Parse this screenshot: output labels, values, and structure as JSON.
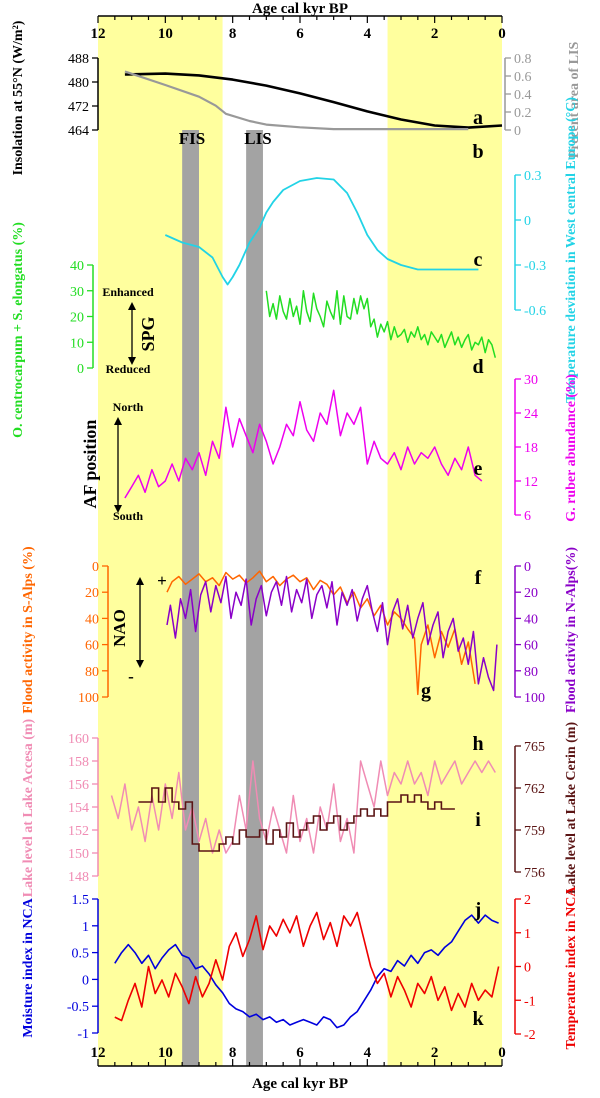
{
  "figure": {
    "top_axis_title": "Age cal kyr BP",
    "bottom_axis_title": "Age cal kyr BP",
    "age_ticks": [
      12,
      10,
      8,
      6,
      4,
      2,
      0
    ],
    "band_labels": [
      "FIS",
      "LIS"
    ],
    "colors": {
      "yellow_band": "#ffff9e",
      "gray_band": "#a3a3a3",
      "insolation": "#000000",
      "lis": "#999999",
      "temp_eu": "#22d3e6",
      "spg": "#22dd22",
      "af": "#ee00ee",
      "flood_s": "#ff6600",
      "flood_n": "#8a00c8",
      "accesa": "#f08cb4",
      "cerin": "#5a1414",
      "moisture": "#0000dd",
      "temp_nca": "#ee0000"
    }
  },
  "chart_data": [
    {
      "id": "a",
      "type": "line",
      "ylabel": "Insolation at 55°N (W/m²)",
      "ylim": [
        464,
        488
      ],
      "yticks": [
        464,
        472,
        480,
        488
      ],
      "x": [
        11.2,
        10,
        9,
        8,
        7,
        6,
        5,
        4,
        3,
        2,
        1,
        0
      ],
      "y": [
        482.5,
        482.8,
        482.2,
        480.8,
        478.8,
        476.2,
        473.3,
        470.2,
        467.5,
        465.5,
        464.8,
        465.5
      ]
    },
    {
      "id": "b",
      "type": "line",
      "ylabel": "Precent area of LIS",
      "ylim": [
        0,
        0.8
      ],
      "yticks": [
        0,
        0.2,
        0.4,
        0.6,
        0.8
      ],
      "x": [
        11.2,
        10,
        9,
        8.5,
        8.2,
        7.5,
        7,
        6,
        5,
        4,
        3,
        2,
        1
      ],
      "y": [
        0.65,
        0.5,
        0.37,
        0.27,
        0.18,
        0.1,
        0.06,
        0.03,
        0.01,
        0.01,
        0.01,
        0.01,
        0.01
      ]
    },
    {
      "id": "c",
      "type": "line",
      "ylabel": "Temperature deviation in West central Europe (°C)",
      "ylim": [
        -0.6,
        0.3
      ],
      "yticks": [
        -0.6,
        -0.3,
        0,
        0.3
      ],
      "x": [
        10,
        9.5,
        9,
        8.6,
        8.3,
        8.15,
        8.0,
        7.8,
        7.5,
        7.2,
        7.0,
        6.8,
        6.5,
        6.0,
        5.5,
        5.0,
        4.6,
        4.3,
        4.0,
        3.7,
        3.4,
        3.0,
        2.5,
        2.0,
        1.5,
        1.0,
        0.7
      ],
      "y": [
        -0.1,
        -0.15,
        -0.18,
        -0.25,
        -0.38,
        -0.43,
        -0.38,
        -0.3,
        -0.15,
        -0.05,
        0.05,
        0.12,
        0.2,
        0.26,
        0.28,
        0.27,
        0.18,
        0.05,
        -0.1,
        -0.2,
        -0.26,
        -0.3,
        -0.33,
        -0.33,
        -0.33,
        -0.33,
        -0.33
      ]
    },
    {
      "id": "d",
      "type": "line",
      "ylabel": "O. centrocarpum + S. elongatus (%)",
      "ylim": [
        0,
        40
      ],
      "yticks": [
        0,
        10,
        20,
        30,
        40
      ],
      "annotations": [
        "Enhanced",
        "SPG",
        "Reduced"
      ],
      "x": [
        7.0,
        6.9,
        6.8,
        6.7,
        6.6,
        6.5,
        6.4,
        6.3,
        6.2,
        6.1,
        6.0,
        5.9,
        5.8,
        5.7,
        5.6,
        5.5,
        5.4,
        5.3,
        5.2,
        5.1,
        5.0,
        4.9,
        4.8,
        4.7,
        4.6,
        4.5,
        4.4,
        4.3,
        4.2,
        4.1,
        4.0,
        3.9,
        3.8,
        3.7,
        3.6,
        3.5,
        3.4,
        3.3,
        3.2,
        3.1,
        3.0,
        2.9,
        2.8,
        2.7,
        2.6,
        2.5,
        2.4,
        2.3,
        2.2,
        2.1,
        2.0,
        1.9,
        1.8,
        1.7,
        1.6,
        1.5,
        1.4,
        1.3,
        1.2,
        1.1,
        1.0,
        0.9,
        0.8,
        0.7,
        0.6,
        0.5,
        0.4,
        0.3,
        0.2
      ],
      "y": [
        30,
        20,
        25,
        19,
        28,
        22,
        19,
        27,
        20,
        24,
        17,
        30,
        22,
        18,
        29,
        23,
        20,
        16,
        26,
        22,
        19,
        30,
        17,
        28,
        20,
        19,
        27,
        21,
        28,
        23,
        27,
        16,
        19,
        12,
        17,
        14,
        18,
        11,
        16,
        12,
        13,
        15,
        10,
        14,
        12,
        16,
        11,
        13,
        9,
        14,
        12,
        10,
        13,
        8,
        11,
        14,
        9,
        12,
        8,
        11,
        13,
        7,
        10,
        9,
        12,
        6,
        11,
        9,
        4
      ]
    },
    {
      "id": "e",
      "type": "line",
      "ylabel": "G. ruber abundance (%)",
      "ylim": [
        6,
        30
      ],
      "yticks": [
        6,
        12,
        18,
        24,
        30
      ],
      "annotations": [
        "North",
        "AF position",
        "South"
      ],
      "x": [
        11.2,
        11.0,
        10.8,
        10.6,
        10.4,
        10.2,
        10.0,
        9.8,
        9.6,
        9.4,
        9.2,
        9.0,
        8.8,
        8.6,
        8.4,
        8.2,
        8.0,
        7.8,
        7.6,
        7.4,
        7.2,
        7.0,
        6.8,
        6.6,
        6.4,
        6.2,
        6.0,
        5.8,
        5.6,
        5.4,
        5.2,
        5.0,
        4.8,
        4.6,
        4.4,
        4.2,
        4.0,
        3.8,
        3.6,
        3.4,
        3.2,
        3.0,
        2.8,
        2.6,
        2.4,
        2.2,
        2.0,
        1.8,
        1.6,
        1.4,
        1.2,
        1.0,
        0.8,
        0.6
      ],
      "y": [
        9,
        11,
        13,
        10,
        14,
        11,
        12,
        15,
        12,
        16,
        14,
        17,
        13,
        19,
        16,
        25,
        18,
        23,
        20,
        17,
        22,
        19,
        15,
        18,
        22,
        20,
        26,
        21,
        19,
        24,
        22,
        28,
        20,
        24,
        22,
        25,
        15,
        19,
        16,
        15,
        17,
        14,
        18,
        15,
        17,
        16,
        18,
        15,
        13,
        16,
        14,
        18,
        13,
        12
      ]
    },
    {
      "id": "f",
      "type": "line",
      "series": [
        {
          "name": "Flood activity in S-Alps (%)",
          "ylim": [
            100,
            0
          ],
          "yticks": [
            0,
            20,
            40,
            60,
            80,
            100
          ],
          "x": [
            9.95,
            9.8,
            9.6,
            9.4,
            9.2,
            9.0,
            8.8,
            8.6,
            8.4,
            8.2,
            8.0,
            7.8,
            7.6,
            7.4,
            7.2,
            7.0,
            6.8,
            6.6,
            6.4,
            6.2,
            6.0,
            5.8,
            5.6,
            5.4,
            5.2,
            5.0,
            4.8,
            4.6,
            4.4,
            4.2,
            4.0,
            3.8,
            3.6,
            3.4,
            3.2,
            3.0,
            2.8,
            2.6,
            2.5,
            2.4,
            2.2,
            2.0,
            1.8,
            1.6,
            1.4,
            1.2,
            1.0,
            0.8
          ],
          "y": [
            20,
            12,
            8,
            14,
            10,
            6,
            12,
            9,
            15,
            5,
            10,
            7,
            13,
            9,
            4,
            12,
            8,
            15,
            10,
            7,
            12,
            9,
            18,
            11,
            14,
            22,
            16,
            28,
            20,
            32,
            25,
            38,
            30,
            45,
            35,
            40,
            48,
            55,
            98,
            60,
            45,
            70,
            50,
            62,
            48,
            75,
            58,
            90
          ]
        },
        {
          "name": "Flood activity in N-Alps(%)",
          "ylim": [
            100,
            0
          ],
          "yticks": [
            0,
            20,
            40,
            60,
            80,
            100
          ],
          "x": [
            9.95,
            9.85,
            9.7,
            9.55,
            9.4,
            9.25,
            9.1,
            8.95,
            8.8,
            8.65,
            8.5,
            8.35,
            8.2,
            8.05,
            7.9,
            7.75,
            7.6,
            7.45,
            7.3,
            7.15,
            7.0,
            6.85,
            6.7,
            6.55,
            6.4,
            6.25,
            6.1,
            5.95,
            5.8,
            5.65,
            5.5,
            5.35,
            5.2,
            5.05,
            4.9,
            4.75,
            4.6,
            4.45,
            4.3,
            4.15,
            4.0,
            3.85,
            3.7,
            3.55,
            3.4,
            3.25,
            3.1,
            2.95,
            2.8,
            2.65,
            2.5,
            2.35,
            2.2,
            2.05,
            1.9,
            1.75,
            1.6,
            1.45,
            1.3,
            1.15,
            1.0,
            0.85,
            0.7,
            0.55,
            0.4,
            0.25,
            0.15
          ],
          "y": [
            45,
            30,
            55,
            25,
            40,
            18,
            50,
            22,
            12,
            35,
            15,
            28,
            8,
            40,
            20,
            30,
            10,
            45,
            25,
            15,
            38,
            20,
            12,
            30,
            8,
            35,
            18,
            28,
            10,
            40,
            22,
            15,
            32,
            12,
            45,
            20,
            30,
            18,
            42,
            25,
            15,
            35,
            50,
            28,
            60,
            35,
            25,
            48,
            30,
            55,
            40,
            28,
            60,
            45,
            35,
            70,
            50,
            40,
            65,
            55,
            75,
            50,
            90,
            70,
            85,
            95,
            60
          ]
        }
      ],
      "annotations": [
        "NAO",
        "+",
        "-"
      ]
    },
    {
      "id": "h",
      "type": "line",
      "ylabel": "Lake level at Lake Accesa (m)",
      "ylim": [
        148,
        160
      ],
      "yticks": [
        148,
        150,
        152,
        154,
        156,
        158,
        160
      ],
      "x": [
        11.6,
        11.4,
        11.2,
        11.0,
        10.8,
        10.6,
        10.4,
        10.2,
        10.0,
        9.8,
        9.6,
        9.4,
        9.2,
        9.0,
        8.8,
        8.6,
        8.4,
        8.2,
        8.0,
        7.8,
        7.6,
        7.4,
        7.2,
        7.0,
        6.8,
        6.6,
        6.4,
        6.2,
        6.0,
        5.8,
        5.6,
        5.4,
        5.2,
        5.0,
        4.8,
        4.6,
        4.4,
        4.2,
        4.0,
        3.8,
        3.6,
        3.4,
        3.2,
        3.0,
        2.8,
        2.6,
        2.4,
        2.2,
        2.0,
        1.8,
        1.6,
        1.4,
        1.2,
        1.0,
        0.8,
        0.6,
        0.4,
        0.2
      ],
      "y": [
        155,
        153,
        156,
        152,
        154,
        151,
        155,
        152,
        156,
        153,
        157,
        152,
        154,
        151,
        153,
        150,
        152,
        150,
        151,
        155,
        152,
        158,
        153,
        151,
        154,
        152,
        150,
        155,
        151,
        153,
        150,
        154,
        152,
        156,
        151,
        153,
        150,
        158,
        156,
        154,
        158,
        155,
        157,
        156,
        158,
        156,
        157,
        155,
        158,
        156,
        157,
        158,
        156,
        157,
        158,
        157,
        158,
        157
      ]
    },
    {
      "id": "i",
      "type": "line",
      "ylabel": "Lake level at Lake Cerin (m)",
      "ylim": [
        756,
        765
      ],
      "yticks": [
        756,
        759,
        762,
        765
      ],
      "x": [
        10.8,
        10.4,
        10.2,
        10.0,
        9.8,
        9.6,
        9.4,
        9.2,
        9.0,
        8.8,
        8.6,
        8.4,
        8.2,
        8.0,
        7.8,
        7.6,
        7.4,
        7.2,
        7.0,
        6.8,
        6.6,
        6.4,
        6.2,
        6.0,
        5.8,
        5.6,
        5.4,
        5.2,
        5.0,
        4.8,
        4.6,
        4.4,
        4.2,
        4.0,
        3.8,
        3.6,
        3.4,
        3.2,
        3.0,
        2.8,
        2.6,
        2.4,
        2.2,
        2.0,
        1.8,
        1.6,
        1.4
      ],
      "y": [
        761,
        762,
        761,
        762,
        761,
        760.5,
        761,
        758,
        757.5,
        757.5,
        757.5,
        758,
        758.5,
        758,
        759,
        758.5,
        758.5,
        759,
        758,
        759,
        758.5,
        759.5,
        758.5,
        759,
        759.5,
        760,
        759,
        759.5,
        760,
        759,
        759.5,
        760,
        760.5,
        760,
        760.5,
        760,
        761,
        761,
        761.5,
        761,
        761.5,
        761,
        760.5,
        761,
        760.5,
        760.5,
        760.5
      ]
    },
    {
      "id": "j",
      "type": "line",
      "ylabel": "Moisture index in NCA",
      "ylim": [
        -1,
        1.5
      ],
      "yticks": [
        -1,
        -0.5,
        0,
        0.5,
        1,
        1.5
      ],
      "x": [
        11.5,
        11.3,
        11.1,
        10.9,
        10.7,
        10.5,
        10.3,
        10.1,
        9.9,
        9.7,
        9.5,
        9.3,
        9.1,
        8.9,
        8.7,
        8.5,
        8.3,
        8.1,
        7.9,
        7.7,
        7.5,
        7.3,
        7.1,
        6.9,
        6.7,
        6.5,
        6.3,
        6.1,
        5.9,
        5.7,
        5.5,
        5.3,
        5.1,
        4.9,
        4.7,
        4.5,
        4.3,
        4.1,
        3.9,
        3.7,
        3.5,
        3.3,
        3.1,
        2.9,
        2.7,
        2.5,
        2.3,
        2.1,
        1.9,
        1.7,
        1.5,
        1.3,
        1.1,
        0.9,
        0.7,
        0.5,
        0.3,
        0.1
      ],
      "y": [
        0.3,
        0.5,
        0.65,
        0.5,
        0.3,
        0.45,
        0.2,
        0.4,
        0.55,
        0.65,
        0.45,
        0.4,
        0.2,
        0.25,
        0.1,
        -0.1,
        -0.25,
        -0.45,
        -0.55,
        -0.6,
        -0.7,
        -0.65,
        -0.75,
        -0.7,
        -0.8,
        -0.75,
        -0.85,
        -0.8,
        -0.75,
        -0.8,
        -0.85,
        -0.7,
        -0.75,
        -0.9,
        -0.85,
        -0.7,
        -0.6,
        -0.4,
        -0.2,
        0.05,
        0.2,
        0.15,
        0.35,
        0.25,
        0.45,
        0.3,
        0.5,
        0.55,
        0.45,
        0.6,
        0.7,
        0.9,
        1.1,
        1.2,
        1.05,
        1.2,
        1.1,
        1.05
      ]
    },
    {
      "id": "k",
      "type": "line",
      "ylabel": "Temperature index in NCA",
      "ylim": [
        -2,
        2
      ],
      "yticks": [
        -2,
        -1,
        0,
        1,
        2
      ],
      "x": [
        11.5,
        11.3,
        11.1,
        10.9,
        10.7,
        10.5,
        10.3,
        10.1,
        9.9,
        9.7,
        9.5,
        9.3,
        9.1,
        8.9,
        8.7,
        8.5,
        8.3,
        8.1,
        7.9,
        7.7,
        7.5,
        7.3,
        7.1,
        6.9,
        6.7,
        6.5,
        6.3,
        6.1,
        5.9,
        5.7,
        5.5,
        5.3,
        5.1,
        4.9,
        4.7,
        4.5,
        4.3,
        4.1,
        3.9,
        3.7,
        3.5,
        3.3,
        3.1,
        2.9,
        2.7,
        2.5,
        2.3,
        2.1,
        1.9,
        1.7,
        1.5,
        1.3,
        1.1,
        0.9,
        0.7,
        0.5,
        0.3,
        0.1
      ],
      "y": [
        -1.5,
        -1.6,
        -1.0,
        -0.5,
        -1.2,
        0.0,
        -0.8,
        -0.4,
        -0.9,
        -0.2,
        -0.6,
        -1.1,
        -0.3,
        -0.9,
        -0.5,
        0.2,
        -0.4,
        0.6,
        1.0,
        0.3,
        0.8,
        1.5,
        0.5,
        1.2,
        0.9,
        1.4,
        1.0,
        1.5,
        0.6,
        1.2,
        1.6,
        0.8,
        1.3,
        0.6,
        1.5,
        1.2,
        1.6,
        0.8,
        0.0,
        -0.5,
        -0.2,
        -0.9,
        -0.3,
        -0.7,
        -1.2,
        -0.5,
        -0.8,
        -0.3,
        -1.0,
        -0.6,
        -1.3,
        -0.8,
        -1.2,
        -0.5,
        -1.0,
        -0.7,
        -0.9,
        0.0
      ]
    }
  ]
}
